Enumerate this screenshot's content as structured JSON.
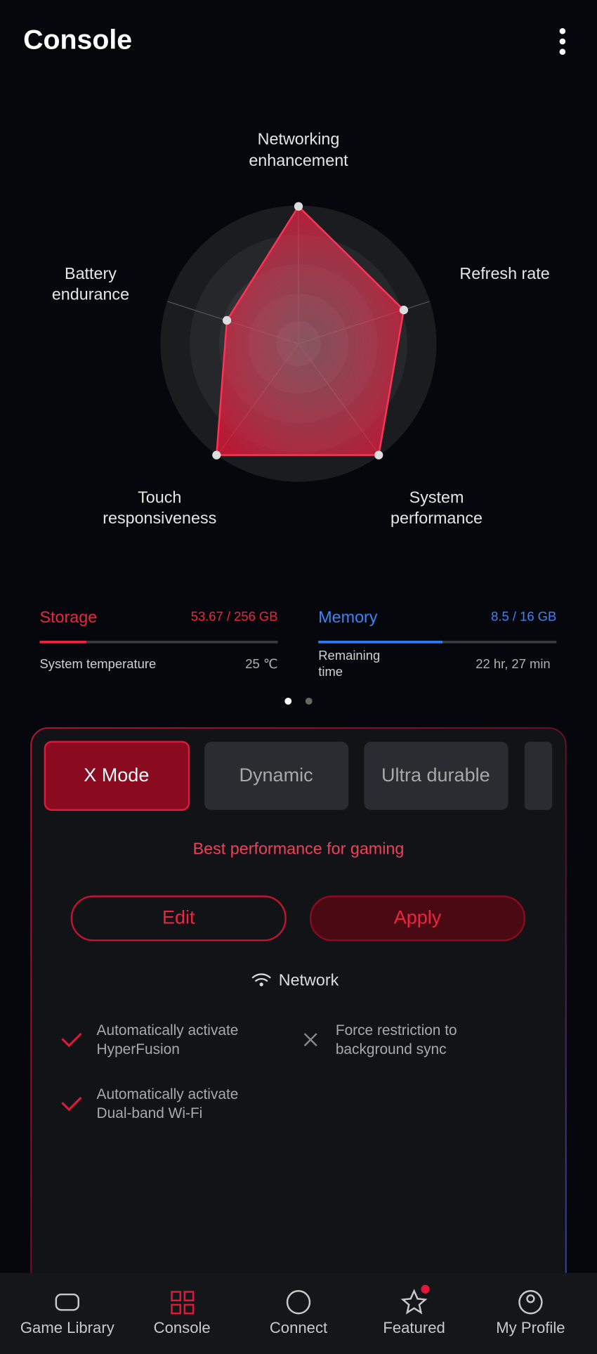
{
  "header": {
    "title": "Console"
  },
  "radar": {
    "labels": [
      [
        "Networking",
        "enhancement"
      ],
      [
        "Refresh rate"
      ],
      [
        "System",
        "performance"
      ],
      [
        "Touch",
        "responsiveness"
      ],
      [
        "Battery",
        "endurance"
      ]
    ]
  },
  "stats": {
    "storage": {
      "label": "Storage",
      "value": "53.67 / 256 GB"
    },
    "temperature": {
      "label": "System temperature",
      "value": "25 ℃"
    },
    "memory": {
      "label": "Memory",
      "value": "8.5 / 16 GB"
    },
    "remaining_time": {
      "label": [
        "Remaining",
        "time"
      ],
      "value": "22 hr, 27 min"
    }
  },
  "modes": {
    "items": [
      "X Mode",
      "Dynamic",
      "Ultra durable"
    ],
    "description": "Best performance for gaming"
  },
  "actions": {
    "edit": "Edit",
    "apply": "Apply"
  },
  "network": {
    "title": "Network",
    "options": [
      {
        "lines": [
          "Automatically activate",
          "HyperFusion"
        ],
        "enabled": true
      },
      {
        "lines": [
          "Force restriction to",
          "background sync"
        ],
        "enabled": false
      },
      {
        "lines": [
          "Automatically activate",
          "Dual-band Wi-Fi"
        ],
        "enabled": true
      }
    ]
  },
  "nav": [
    "Game Library",
    "Console",
    "Connect",
    "Featured",
    "My Profile"
  ]
}
